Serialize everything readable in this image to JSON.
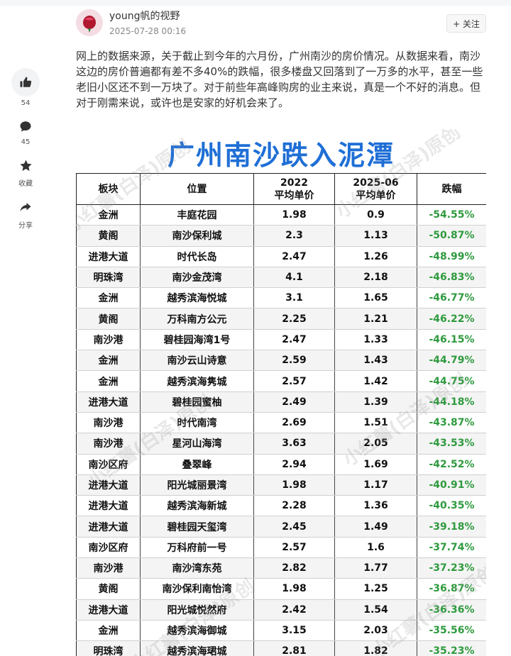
{
  "author": {
    "name": "young帆的视野",
    "time": "2025-07-28 00:16"
  },
  "follow_label": "+ 关注",
  "post_text": "网上的数据来源，关于截止到今年的六月份，广州南沙的房价情况。从数据来看，南沙这边的房价普遍都有差不多40%的跌幅，很多楼盘又回落到了一万多的水平，甚至一些老旧小区还不到一万块了。对于前些年高峰购房的业主来说，真是一个不好的消息。但对于刚需来说，或许也是安家的好机会来了。",
  "rail": {
    "like": {
      "icon": "thumbs-up-icon",
      "count": "54"
    },
    "comment": {
      "icon": "comment-icon",
      "count": "45"
    },
    "favorite": {
      "icon": "star-icon",
      "label": "收藏"
    },
    "share": {
      "icon": "share-icon",
      "label": "分享"
    }
  },
  "image": {
    "title": "广州南沙跌入泥潭",
    "watermark": "小红薯(白泽)原创",
    "headers": {
      "area": "板块",
      "location": "位置",
      "y2022_line1": "2022",
      "y2022_line2": "平均单价",
      "y2025_line1": "2025-06",
      "y2025_line2": "平均单价",
      "drop": "跌幅"
    },
    "rows": [
      {
        "area": "金洲",
        "location": "丰庭花园",
        "y2022": "1.98",
        "y2025": "0.9",
        "drop": "-54.55%"
      },
      {
        "area": "黄阁",
        "location": "南沙保利城",
        "y2022": "2.3",
        "y2025": "1.13",
        "drop": "-50.87%"
      },
      {
        "area": "进港大道",
        "location": "时代长岛",
        "y2022": "2.47",
        "y2025": "1.26",
        "drop": "-48.99%"
      },
      {
        "area": "明珠湾",
        "location": "南沙金茂湾",
        "y2022": "4.1",
        "y2025": "2.18",
        "drop": "-46.83%"
      },
      {
        "area": "金洲",
        "location": "越秀滨海悦城",
        "y2022": "3.1",
        "y2025": "1.65",
        "drop": "-46.77%"
      },
      {
        "area": "黄阁",
        "location": "万科南方公元",
        "y2022": "2.25",
        "y2025": "1.21",
        "drop": "-46.22%"
      },
      {
        "area": "南沙港",
        "location": "碧桂园海湾1号",
        "y2022": "2.47",
        "y2025": "1.33",
        "drop": "-46.15%"
      },
      {
        "area": "金洲",
        "location": "南沙云山诗意",
        "y2022": "2.59",
        "y2025": "1.43",
        "drop": "-44.79%"
      },
      {
        "area": "金洲",
        "location": "越秀滨海隽城",
        "y2022": "2.57",
        "y2025": "1.42",
        "drop": "-44.75%"
      },
      {
        "area": "进港大道",
        "location": "碧桂园蜜柚",
        "y2022": "2.49",
        "y2025": "1.39",
        "drop": "-44.18%"
      },
      {
        "area": "南沙港",
        "location": "时代南湾",
        "y2022": "2.69",
        "y2025": "1.51",
        "drop": "-43.87%"
      },
      {
        "area": "南沙港",
        "location": "星河山海湾",
        "y2022": "3.63",
        "y2025": "2.05",
        "drop": "-43.53%"
      },
      {
        "area": "南沙区府",
        "location": "叠翠峰",
        "y2022": "2.94",
        "y2025": "1.69",
        "drop": "-42.52%"
      },
      {
        "area": "进港大道",
        "location": "阳光城丽景湾",
        "y2022": "1.98",
        "y2025": "1.17",
        "drop": "-40.91%"
      },
      {
        "area": "进港大道",
        "location": "越秀滨海新城",
        "y2022": "2.28",
        "y2025": "1.36",
        "drop": "-40.35%"
      },
      {
        "area": "进港大道",
        "location": "碧桂园天玺湾",
        "y2022": "2.45",
        "y2025": "1.49",
        "drop": "-39.18%"
      },
      {
        "area": "南沙区府",
        "location": "万科府前一号",
        "y2022": "2.57",
        "y2025": "1.6",
        "drop": "-37.74%"
      },
      {
        "area": "南沙港",
        "location": "南沙湾东苑",
        "y2022": "2.82",
        "y2025": "1.77",
        "drop": "-37.23%"
      },
      {
        "area": "黄阁",
        "location": "南沙保利南怡湾",
        "y2022": "1.98",
        "y2025": "1.25",
        "drop": "-36.87%"
      },
      {
        "area": "进港大道",
        "location": "阳光城悦然府",
        "y2022": "2.42",
        "y2025": "1.54",
        "drop": "-36.36%"
      },
      {
        "area": "金洲",
        "location": "越秀滨海御城",
        "y2022": "3.15",
        "y2025": "2.03",
        "drop": "-35.56%"
      },
      {
        "area": "明珠湾",
        "location": "越秀滨海珺城",
        "y2022": "2.81",
        "y2025": "1.82",
        "drop": "-35.23%"
      }
    ]
  },
  "colors": {
    "title_blue": "#1f6fd6",
    "drop_green": "#2e9a3e"
  }
}
